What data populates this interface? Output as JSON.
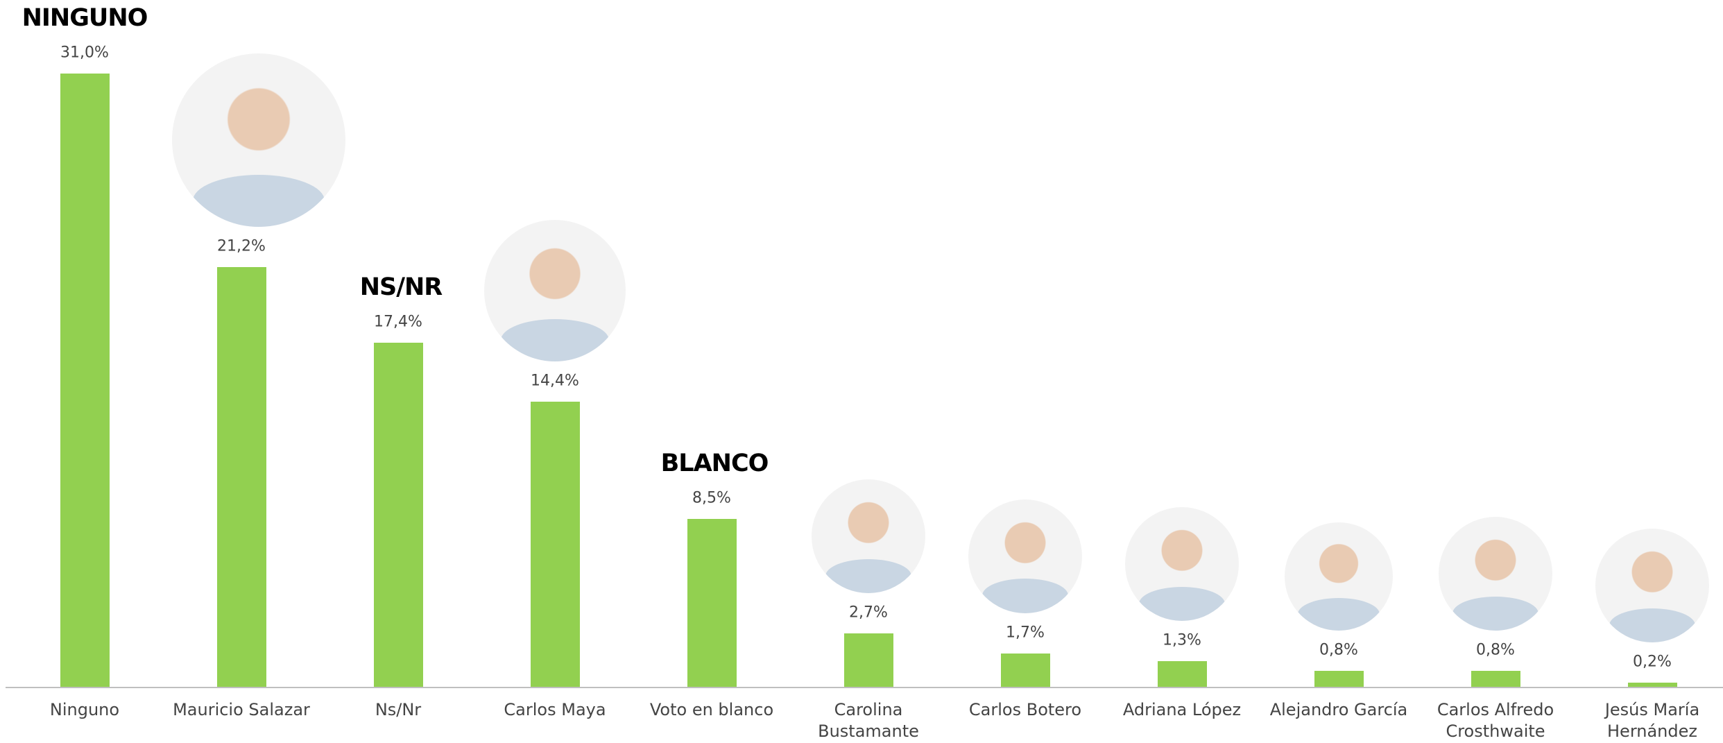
{
  "chart_data": {
    "type": "bar",
    "categories": [
      "Ninguno",
      "Mauricio Salazar",
      "Ns/Nr",
      "Carlos Maya",
      "Voto en blanco",
      "Carolina Bustamante",
      "Carlos Botero",
      "Adriana López",
      "Alejandro García",
      "Carlos Alfredo Crosthwaite",
      "Jesús María Hernández"
    ],
    "values": [
      31.0,
      21.2,
      17.4,
      14.4,
      8.5,
      2.7,
      1.7,
      1.3,
      0.8,
      0.8,
      0.2
    ],
    "value_labels": [
      "31,0%",
      "21,2%",
      "17,4%",
      "14,4%",
      "8,5%",
      "2,7%",
      "1,7%",
      "1,3%",
      "0,8%",
      "0,8%",
      "0,2%"
    ],
    "color": "#92d050",
    "annotations": [
      {
        "text": "NINGUNO",
        "category": "Ninguno"
      },
      {
        "text": "NS/NR",
        "category": "Ns/Nr"
      },
      {
        "text": "BLANCO",
        "category": "Voto en blanco"
      }
    ]
  }
}
